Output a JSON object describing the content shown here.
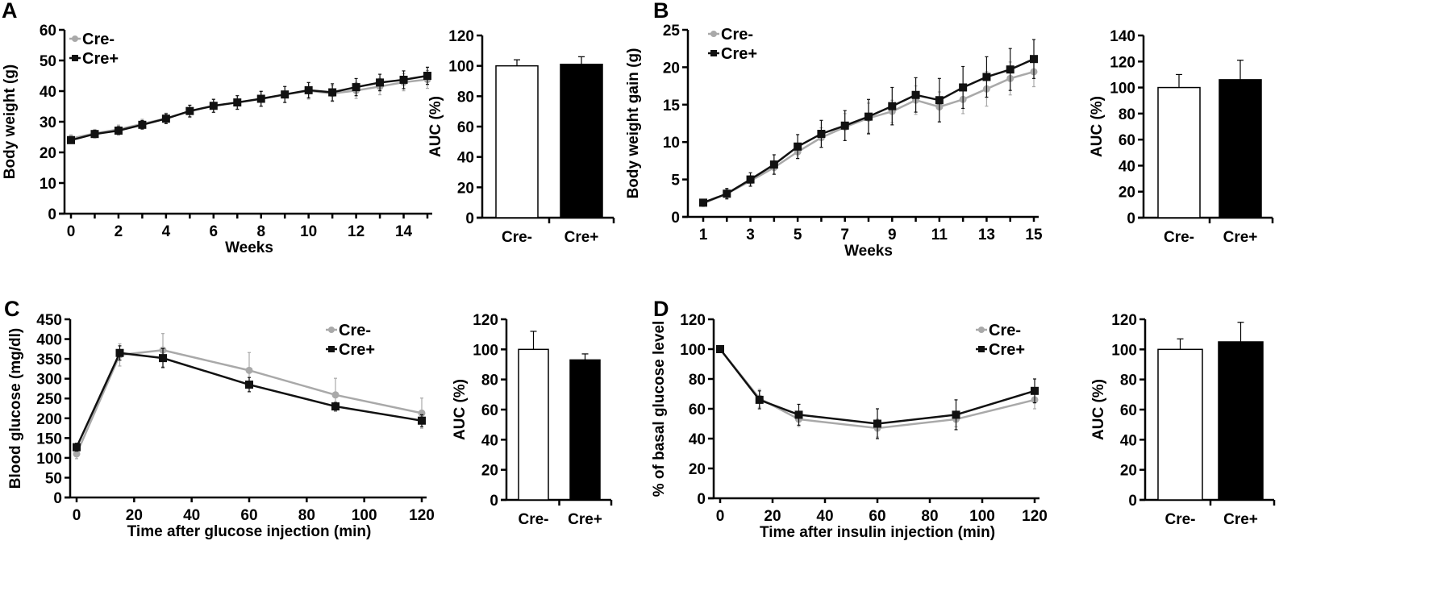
{
  "colors": {
    "cre_minus": "#a9a9a9",
    "cre_plus": "#111111",
    "bar_minus": "#ffffff",
    "bar_plus": "#000000"
  },
  "chart_data": [
    {
      "panel": "A",
      "type": "line",
      "xlabel": "Weeks",
      "ylabel": "Body weight (g)",
      "ylim": [
        0,
        60
      ],
      "yticks": [
        0,
        10,
        20,
        30,
        40,
        50,
        60
      ],
      "xlim": [
        0,
        15
      ],
      "xticks": [
        0,
        2,
        4,
        6,
        8,
        10,
        12,
        14
      ],
      "legend": "top-left",
      "grid": false,
      "x": [
        0,
        1,
        2,
        3,
        4,
        5,
        6,
        7,
        8,
        9,
        10,
        11,
        12,
        13,
        14,
        15
      ],
      "series": [
        {
          "name": "Cre-",
          "marker": "circle",
          "values": [
            24.5,
            26.2,
            27.5,
            29.3,
            31.1,
            33.4,
            35.2,
            36.3,
            37.5,
            38.9,
            40.1,
            39.2,
            40.2,
            41.5,
            42.9,
            43.8
          ],
          "errors": [
            1.2,
            1.3,
            1.4,
            1.5,
            1.7,
            2.0,
            2.2,
            2.3,
            2.5,
            2.6,
            2.7,
            2.6,
            2.6,
            2.7,
            2.8,
            2.9
          ]
        },
        {
          "name": "Cre+",
          "marker": "square",
          "values": [
            24.0,
            26.0,
            27.1,
            29.0,
            31.0,
            33.5,
            35.2,
            36.3,
            37.5,
            38.9,
            40.3,
            39.6,
            41.3,
            42.8,
            43.7,
            45.0
          ],
          "errors": [
            1.0,
            1.2,
            1.3,
            1.4,
            1.6,
            1.9,
            2.1,
            2.2,
            2.4,
            2.6,
            2.5,
            2.8,
            2.8,
            2.7,
            2.9,
            2.8
          ]
        }
      ]
    },
    {
      "panel": "A",
      "type": "bar",
      "ylabel": "AUC (%)",
      "ylim": [
        0,
        120
      ],
      "yticks": [
        0,
        20,
        40,
        60,
        80,
        100,
        120
      ],
      "categories": [
        "Cre-",
        "Cre+"
      ],
      "values": [
        100,
        101
      ],
      "errors": [
        4,
        5
      ]
    },
    {
      "panel": "B",
      "type": "line",
      "xlabel": "Weeks",
      "ylabel": "Body weight gain (g)",
      "ylim": [
        0,
        25
      ],
      "yticks": [
        0,
        5,
        10,
        15,
        20,
        25
      ],
      "xlim": [
        1,
        15
      ],
      "xticks": [
        1,
        3,
        5,
        7,
        9,
        11,
        13,
        15
      ],
      "legend": "top-left",
      "grid": false,
      "x": [
        1,
        2,
        3,
        4,
        5,
        6,
        7,
        8,
        9,
        10,
        11,
        12,
        13,
        14,
        15
      ],
      "series": [
        {
          "name": "Cre-",
          "marker": "circle",
          "values": [
            1.8,
            3.1,
            4.8,
            6.6,
            8.7,
            10.6,
            12.0,
            13.2,
            14.1,
            15.6,
            14.7,
            15.7,
            17.1,
            18.5,
            19.4
          ],
          "errors": [
            0.4,
            0.6,
            0.7,
            0.9,
            0.9,
            1.3,
            1.8,
            2.0,
            1.5,
            1.9,
            2.0,
            1.9,
            2.3,
            2.2,
            2.0
          ]
        },
        {
          "name": "Cre+",
          "marker": "square",
          "values": [
            1.9,
            3.1,
            5.0,
            7.0,
            9.4,
            11.1,
            12.2,
            13.4,
            14.8,
            16.3,
            15.6,
            17.3,
            18.7,
            19.7,
            21.1
          ],
          "errors": [
            0.4,
            0.7,
            0.9,
            1.3,
            1.6,
            1.8,
            2.0,
            2.3,
            2.5,
            2.3,
            2.9,
            2.8,
            2.7,
            2.8,
            2.6
          ]
        }
      ]
    },
    {
      "panel": "B",
      "type": "bar",
      "ylabel": "AUC (%)",
      "ylim": [
        0,
        140
      ],
      "yticks": [
        0,
        20,
        40,
        60,
        80,
        100,
        120,
        140
      ],
      "categories": [
        "Cre-",
        "Cre+"
      ],
      "values": [
        100,
        106
      ],
      "errors": [
        10,
        15
      ]
    },
    {
      "panel": "C",
      "type": "line",
      "xlabel": "Time after glucose injection (min)",
      "ylabel": "Blood glucose (mg/dl)",
      "ylim": [
        0,
        450
      ],
      "yticks": [
        0,
        50,
        100,
        150,
        200,
        250,
        300,
        350,
        400,
        450
      ],
      "xlim": [
        0,
        120
      ],
      "xticks": [
        0,
        20,
        40,
        60,
        80,
        100,
        120
      ],
      "legend": "top-right",
      "grid": false,
      "x": [
        0,
        15,
        30,
        60,
        90,
        120
      ],
      "series": [
        {
          "name": "Cre-",
          "marker": "circle",
          "values": [
            110,
            360,
            372,
            321,
            259,
            213
          ],
          "errors": [
            12,
            28,
            42,
            45,
            42,
            38
          ]
        },
        {
          "name": "Cre+",
          "marker": "square",
          "values": [
            127,
            365,
            352,
            285,
            230,
            194
          ],
          "errors": [
            10,
            18,
            24,
            18,
            10,
            15
          ]
        }
      ]
    },
    {
      "panel": "C",
      "type": "bar",
      "ylabel": "AUC (%)",
      "ylim": [
        0,
        120
      ],
      "yticks": [
        0,
        20,
        40,
        60,
        80,
        100,
        120
      ],
      "categories": [
        "Cre-",
        "Cre+"
      ],
      "values": [
        100,
        93
      ],
      "errors": [
        12,
        4
      ]
    },
    {
      "panel": "D",
      "type": "line",
      "xlabel": "Time after insulin injection (min)",
      "ylabel": "% of basal glucose level",
      "ylim": [
        0,
        120
      ],
      "yticks": [
        0,
        20,
        40,
        60,
        80,
        100,
        120
      ],
      "xlim": [
        0,
        120
      ],
      "xticks": [
        0,
        20,
        40,
        60,
        80,
        100,
        120
      ],
      "legend": "top-right",
      "grid": false,
      "x": [
        0,
        15,
        30,
        60,
        90,
        120
      ],
      "series": [
        {
          "name": "Cre-",
          "marker": "circle",
          "values": [
            100,
            67,
            53,
            47,
            53,
            66
          ],
          "errors": [
            0,
            6,
            5,
            6,
            5,
            6
          ]
        },
        {
          "name": "Cre+",
          "marker": "square",
          "values": [
            100,
            66,
            56,
            50,
            56,
            72
          ],
          "errors": [
            0,
            6,
            7,
            10,
            10,
            8
          ]
        }
      ]
    },
    {
      "panel": "D",
      "type": "bar",
      "ylabel": "AUC (%)",
      "ylim": [
        0,
        120
      ],
      "yticks": [
        0,
        20,
        40,
        60,
        80,
        100,
        120
      ],
      "categories": [
        "Cre-",
        "Cre+"
      ],
      "values": [
        100,
        105
      ],
      "errors": [
        7,
        13
      ]
    }
  ]
}
